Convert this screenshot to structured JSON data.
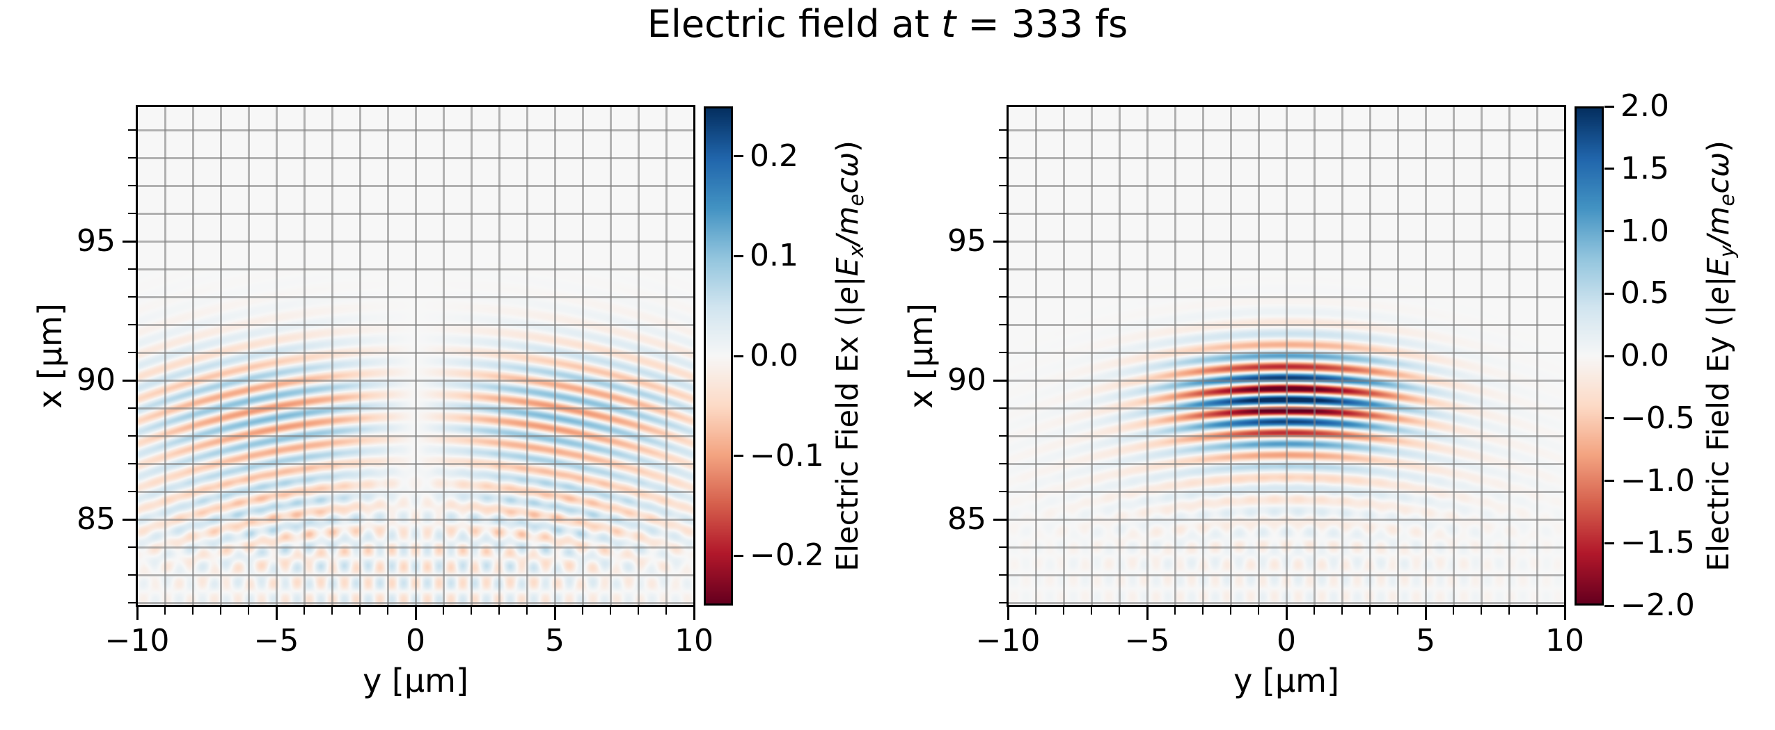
{
  "figure": {
    "title": "Electric field at t = 333 fs",
    "title_parts": [
      {
        "t": "Electric field at "
      },
      {
        "t": "t",
        "i": true
      },
      {
        "t": " = 333 fs"
      }
    ],
    "background": "#ffffff"
  },
  "colors": {
    "rdbu_colormap_low_to_high": [
      "#67001f",
      "#b2182b",
      "#d6604d",
      "#f4a582",
      "#fddbc7",
      "#f7f7f7",
      "#d1e5f0",
      "#92c5de",
      "#4393c3",
      "#2166ac",
      "#053061"
    ],
    "grid": "rgba(128,128,128,0.60)",
    "spine": "#000000",
    "plot_background": "#f7f7f7",
    "text": "#000000"
  },
  "chart_data": [
    {
      "type": "heatmap",
      "series_name": "Ex",
      "xlabel": "y [μm]",
      "ylabel": "x [μm]",
      "xlim": [
        -10,
        10
      ],
      "ylim": [
        81.9,
        99.85
      ],
      "xticks": [
        -10,
        -5,
        0,
        5,
        10
      ],
      "xtick_labels": [
        "−10",
        "−5",
        "0",
        "5",
        "10"
      ],
      "yticks": [
        95,
        90,
        85
      ],
      "ytick_labels": [
        "95",
        "90",
        "85"
      ],
      "minor_tick_step": 1,
      "grid": true,
      "grid_step": 1,
      "colormap": "RdBu",
      "vmin": -0.25,
      "vmax": 0.25,
      "colorbar_label": "Electric Field Ex (|e|Ex/mecω)",
      "colorbar_label_parts": [
        {
          "t": "Electric Field Ex ("
        },
        {
          "t": "|e|",
          "i": true
        },
        {
          "t": "E",
          "i": true
        },
        {
          "t": "x",
          "i": true,
          "sub": true
        },
        {
          "t": "/",
          "i": true
        },
        {
          "t": "m",
          "i": true
        },
        {
          "t": "e",
          "i": true,
          "sub": true
        },
        {
          "t": "c",
          "i": true
        },
        {
          "t": "ω",
          "i": true
        },
        {
          "t": ")"
        }
      ],
      "colorbar_tick_values": [
        0.2,
        0.1,
        0.0,
        -0.1,
        -0.2
      ],
      "colorbar_tick_labels": [
        "0.2",
        "0.1",
        "0.0",
        "−0.1",
        "−0.2"
      ],
      "field_model": {
        "description": "weak longitudinal field of focused laser pulse: curved wavefronts, node at y=0, crossing diagonal fringes near x=83",
        "components": [
          {
            "kind": "pulse",
            "profile": "node",
            "A": 0.11,
            "x0": 89.1,
            "lambda": 0.8,
            "R": 28,
            "xc": 88.8,
            "sx": 2.4,
            "sy": 7.3
          },
          {
            "kind": "pulse",
            "profile": "node",
            "A": 0.05,
            "x0": 89.1,
            "lambda": 0.8,
            "R": 28,
            "xc": 85.2,
            "sx": 1.7,
            "sy": 7.8
          },
          {
            "kind": "checker",
            "A": 0.055,
            "x0": 83.3,
            "lx": 1.2,
            "ly": 0.85,
            "xc": 83.2,
            "sx": 2.4,
            "sy": 9.0
          }
        ]
      }
    },
    {
      "type": "heatmap",
      "series_name": "Ey",
      "xlabel": "y [μm]",
      "ylabel": "x [μm]",
      "xlim": [
        -10,
        10
      ],
      "ylim": [
        81.9,
        99.85
      ],
      "xticks": [
        -10,
        -5,
        0,
        5,
        10
      ],
      "xtick_labels": [
        "−10",
        "−5",
        "0",
        "5",
        "10"
      ],
      "yticks": [
        95,
        90,
        85
      ],
      "ytick_labels": [
        "95",
        "90",
        "85"
      ],
      "minor_tick_step": 1,
      "grid": true,
      "grid_step": 1,
      "colormap": "RdBu",
      "vmin": -2.0,
      "vmax": 2.0,
      "colorbar_label": "Electric Field Ey (|e|Ey/mecω)",
      "colorbar_label_parts": [
        {
          "t": "Electric Field Ey ("
        },
        {
          "t": "|e|",
          "i": true
        },
        {
          "t": "E",
          "i": true
        },
        {
          "t": "y",
          "i": true,
          "sub": true
        },
        {
          "t": "/",
          "i": true
        },
        {
          "t": "m",
          "i": true
        },
        {
          "t": "e",
          "i": true,
          "sub": true
        },
        {
          "t": "c",
          "i": true
        },
        {
          "t": "ω",
          "i": true
        },
        {
          "t": ")"
        }
      ],
      "colorbar_tick_values": [
        2.0,
        1.5,
        1.0,
        0.5,
        0.0,
        -0.5,
        -1.0,
        -1.5,
        -2.0
      ],
      "colorbar_tick_labels": [
        "2.0",
        "1.5",
        "1.0",
        "0.5",
        "0.0",
        "−0.5",
        "−1.0",
        "−1.5",
        "−2.0"
      ],
      "field_model": {
        "description": "main transverse laser pulse: lambda 0.8 um stripes, gaussian envelope centered (x=89.4, y=0), curved wavefronts, faint tail arcs below",
        "components": [
          {
            "kind": "pulse",
            "profile": "gauss",
            "A": 2.15,
            "x0": 89.3,
            "lambda": 0.8,
            "R": 28,
            "xc": 89.4,
            "sx": 1.8,
            "sy": 4.0
          },
          {
            "kind": "pulse",
            "profile": "gauss",
            "A": 0.28,
            "x0": 89.3,
            "lambda": 0.8,
            "R": 28,
            "xc": 86.8,
            "sx": 2.4,
            "sy": 7.2
          },
          {
            "kind": "checker",
            "A": 0.18,
            "x0": 83.4,
            "lx": 1.2,
            "ly": 0.85,
            "xc": 83.3,
            "sx": 2.4,
            "sy": 9.0
          }
        ]
      }
    }
  ]
}
